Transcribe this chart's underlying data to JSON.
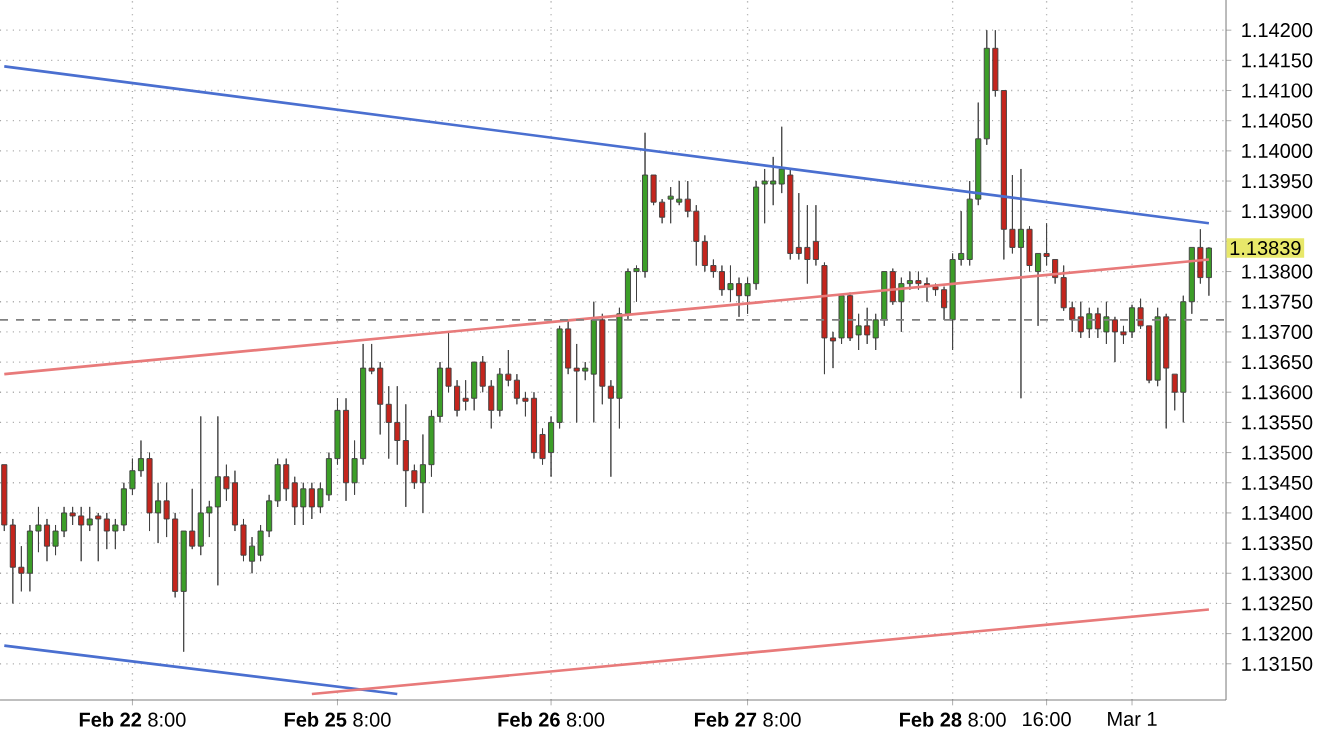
{
  "chart_data": {
    "type": "candlestick",
    "categories": [
      null,
      null,
      null,
      null,
      null,
      null,
      null,
      null,
      null,
      null,
      null,
      null,
      null,
      null,
      null,
      "**Feb 22** 8:00",
      null,
      null,
      null,
      null,
      null,
      null,
      null,
      null,
      null,
      null,
      null,
      null,
      null,
      null,
      null,
      null,
      null,
      null,
      null,
      null,
      null,
      null,
      null,
      "**Feb 25** 8:00",
      null,
      null,
      null,
      null,
      null,
      null,
      null,
      null,
      null,
      null,
      null,
      null,
      null,
      null,
      null,
      null,
      null,
      null,
      null,
      null,
      null,
      null,
      null,
      null,
      "**Feb 26** 8:00",
      null,
      null,
      null,
      null,
      null,
      null,
      null,
      null,
      null,
      null,
      null,
      null,
      null,
      null,
      null,
      null,
      null,
      null,
      null,
      null,
      null,
      null,
      "**Feb 27** 8:00",
      null,
      null,
      null,
      null,
      null,
      null,
      null,
      null,
      null,
      null,
      null,
      null,
      null,
      null,
      null,
      null,
      null,
      null,
      null,
      null,
      null,
      null,
      null,
      "**Feb 28** 8:00",
      null,
      null,
      null,
      null,
      null,
      null,
      null,
      null,
      null,
      null,
      "16:00",
      null,
      null,
      null,
      null,
      null,
      null,
      null,
      null,
      null,
      "Mar 1",
      null,
      null,
      null,
      null,
      null,
      null,
      null,
      null,
      null
    ],
    "ohlc": [
      [
        1.1348,
        1.1348,
        1.1337,
        1.1338
      ],
      [
        1.1338,
        1.1339,
        1.1325,
        1.1331
      ],
      [
        1.1331,
        1.13345,
        1.1327,
        1.133
      ],
      [
        1.133,
        1.1338,
        1.1327,
        1.1337
      ],
      [
        1.1337,
        1.1341,
        1.13335,
        1.1338
      ],
      [
        1.1338,
        1.1339,
        1.1332,
        1.13345
      ],
      [
        1.13345,
        1.1338,
        1.1333,
        1.1337
      ],
      [
        1.1337,
        1.1341,
        1.1336,
        1.134
      ],
      [
        1.134,
        1.1341,
        1.1338,
        1.13395
      ],
      [
        1.13395,
        1.1341,
        1.1332,
        1.1338
      ],
      [
        1.1338,
        1.1341,
        1.1337,
        1.1339
      ],
      [
        1.13395,
        1.134,
        1.1332,
        1.1339
      ],
      [
        1.1339,
        1.134,
        1.1334,
        1.1337
      ],
      [
        1.1337,
        1.1339,
        1.1334,
        1.1338
      ],
      [
        1.1338,
        1.1345,
        1.1337,
        1.1344
      ],
      [
        1.1344,
        1.1349,
        1.1343,
        1.1347
      ],
      [
        1.1347,
        1.1352,
        1.1346,
        1.1349
      ],
      [
        1.1349,
        1.135,
        1.1337,
        1.134
      ],
      [
        1.134,
        1.1345,
        1.1335,
        1.1342
      ],
      [
        1.1342,
        1.1345,
        1.1336,
        1.1339
      ],
      [
        1.1339,
        1.134,
        1.1326,
        1.1327
      ],
      [
        1.1327,
        1.1337,
        1.1317,
        1.1337
      ],
      [
        1.1337,
        1.1344,
        1.1334,
        1.13345
      ],
      [
        1.13345,
        1.1356,
        1.1333,
        1.134
      ],
      [
        1.134,
        1.1342,
        1.1336,
        1.1341
      ],
      [
        1.1341,
        1.1356,
        1.1328,
        1.1346
      ],
      [
        1.1346,
        1.1348,
        1.1342,
        1.1344
      ],
      [
        1.1345,
        1.1347,
        1.1337,
        1.1338
      ],
      [
        1.1338,
        1.1339,
        1.1332,
        1.1333
      ],
      [
        1.1332,
        1.1336,
        1.133,
        1.13345
      ],
      [
        1.1333,
        1.1338,
        1.1332,
        1.1337
      ],
      [
        1.1337,
        1.1343,
        1.1336,
        1.1342
      ],
      [
        1.1342,
        1.1349,
        1.1341,
        1.1348
      ],
      [
        1.1348,
        1.1349,
        1.1342,
        1.1344
      ],
      [
        1.1345,
        1.1346,
        1.1338,
        1.1341
      ],
      [
        1.1341,
        1.1345,
        1.1338,
        1.1344
      ],
      [
        1.1344,
        1.1345,
        1.1339,
        1.1341
      ],
      [
        1.1341,
        1.1345,
        1.134,
        1.1344
      ],
      [
        1.1343,
        1.135,
        1.1342,
        1.1349
      ],
      [
        1.1349,
        1.1359,
        1.1348,
        1.1357
      ],
      [
        1.1357,
        1.1359,
        1.1342,
        1.1345
      ],
      [
        1.1345,
        1.1352,
        1.1343,
        1.1349
      ],
      [
        1.1349,
        1.1368,
        1.1348,
        1.1364
      ],
      [
        1.1364,
        1.1368,
        1.1363,
        1.13635
      ],
      [
        1.1364,
        1.1365,
        1.1353,
        1.1358
      ],
      [
        1.1358,
        1.1361,
        1.1349,
        1.1355
      ],
      [
        1.1355,
        1.1361,
        1.1348,
        1.1352
      ],
      [
        1.1352,
        1.1358,
        1.1341,
        1.1347
      ],
      [
        1.1347,
        1.1348,
        1.1344,
        1.1345
      ],
      [
        1.1345,
        1.1353,
        1.134,
        1.1348
      ],
      [
        1.1348,
        1.1357,
        1.1346,
        1.1356
      ],
      [
        1.1356,
        1.1365,
        1.1355,
        1.1364
      ],
      [
        1.1364,
        1.137,
        1.136,
        1.1361
      ],
      [
        1.1361,
        1.1362,
        1.1356,
        1.1357
      ],
      [
        1.1359,
        1.1362,
        1.1357,
        1.13585
      ],
      [
        1.1359,
        1.1365,
        1.1357,
        1.1365
      ],
      [
        1.1365,
        1.1366,
        1.136,
        1.1361
      ],
      [
        1.1361,
        1.1362,
        1.1354,
        1.1357
      ],
      [
        1.1357,
        1.1364,
        1.1356,
        1.1363
      ],
      [
        1.1363,
        1.1367,
        1.1361,
        1.1362
      ],
      [
        1.1362,
        1.1363,
        1.1358,
        1.1359
      ],
      [
        1.1359,
        1.136,
        1.1356,
        1.13585
      ],
      [
        1.1359,
        1.136,
        1.1349,
        1.135
      ],
      [
        1.1353,
        1.1354,
        1.1348,
        1.1349
      ],
      [
        1.135,
        1.1356,
        1.1346,
        1.1355
      ],
      [
        1.1355,
        1.1371,
        1.1354,
        1.13705
      ],
      [
        1.13705,
        1.1372,
        1.1363,
        1.1364
      ],
      [
        1.1364,
        1.1368,
        1.1355,
        1.13635
      ],
      [
        1.13635,
        1.1365,
        1.1362,
        1.1364
      ],
      [
        1.1363,
        1.1375,
        1.1355,
        1.1372
      ],
      [
        1.1372,
        1.1373,
        1.1358,
        1.1361
      ],
      [
        1.1361,
        1.1362,
        1.1346,
        1.1359
      ],
      [
        1.1359,
        1.1374,
        1.1354,
        1.1373
      ],
      [
        1.1373,
        1.13805,
        1.1372,
        1.138
      ],
      [
        1.138,
        1.1381,
        1.1375,
        1.13805
      ],
      [
        1.138,
        1.1403,
        1.1379,
        1.1396
      ],
      [
        1.1396,
        1.1396,
        1.1391,
        1.13915
      ],
      [
        1.13915,
        1.1392,
        1.1388,
        1.1389
      ],
      [
        1.1392,
        1.1394,
        1.1388,
        1.13925
      ],
      [
        1.13915,
        1.1395,
        1.1391,
        1.1392
      ],
      [
        1.1392,
        1.1395,
        1.1389,
        1.139
      ],
      [
        1.139,
        1.1391,
        1.1381,
        1.1385
      ],
      [
        1.1385,
        1.1386,
        1.138,
        1.1381
      ],
      [
        1.1381,
        1.1382,
        1.1379,
        1.138
      ],
      [
        1.138,
        1.1381,
        1.1376,
        1.1377
      ],
      [
        1.1377,
        1.1381,
        1.1375,
        1.1378
      ],
      [
        1.1378,
        1.1379,
        1.13725,
        1.1376
      ],
      [
        1.1376,
        1.1379,
        1.1373,
        1.1378
      ],
      [
        1.1378,
        1.1395,
        1.1377,
        1.1394
      ],
      [
        1.13945,
        1.1397,
        1.1388,
        1.1395
      ],
      [
        1.13945,
        1.1399,
        1.1391,
        1.1395
      ],
      [
        1.13945,
        1.1404,
        1.1393,
        1.1397
      ],
      [
        1.1396,
        1.1397,
        1.1382,
        1.1383
      ],
      [
        1.1384,
        1.1393,
        1.1382,
        1.1383
      ],
      [
        1.1384,
        1.1391,
        1.1378,
        1.1382
      ],
      [
        1.1385,
        1.1391,
        1.1381,
        1.1382
      ],
      [
        1.1381,
        1.13815,
        1.1363,
        1.1369
      ],
      [
        1.1369,
        1.137,
        1.1364,
        1.13685
      ],
      [
        1.1369,
        1.1376,
        1.1368,
        1.1376
      ],
      [
        1.1376,
        1.13765,
        1.13685,
        1.1369
      ],
      [
        1.13695,
        1.1373,
        1.1367,
        1.1371
      ],
      [
        1.1371,
        1.1374,
        1.1368,
        1.13695
      ],
      [
        1.1369,
        1.1373,
        1.1367,
        1.1372
      ],
      [
        1.1372,
        1.138,
        1.1371,
        1.138
      ],
      [
        1.138,
        1.13805,
        1.13745,
        1.1375
      ],
      [
        1.1375,
        1.1379,
        1.137,
        1.1378
      ],
      [
        1.1378,
        1.138,
        1.1377,
        1.13785
      ],
      [
        1.13785,
        1.138,
        1.1377,
        1.1378
      ],
      [
        1.1378,
        1.1379,
        1.1375,
        1.13775
      ],
      [
        1.13775,
        1.1378,
        1.1376,
        1.1377
      ],
      [
        1.1377,
        1.13775,
        1.1372,
        1.1374
      ],
      [
        1.1372,
        1.1383,
        1.1367,
        1.1382
      ],
      [
        1.1382,
        1.139,
        1.1381,
        1.1383
      ],
      [
        1.1382,
        1.1395,
        1.1381,
        1.1392
      ],
      [
        1.1392,
        1.1408,
        1.1391,
        1.1402
      ],
      [
        1.1402,
        1.142,
        1.1401,
        1.1417
      ],
      [
        1.1417,
        1.142,
        1.1409,
        1.141
      ],
      [
        1.141,
        1.141,
        1.1382,
        1.1387
      ],
      [
        1.1387,
        1.1396,
        1.1383,
        1.1384
      ],
      [
        1.1384,
        1.1397,
        1.1359,
        1.1387
      ],
      [
        1.1387,
        1.13875,
        1.138,
        1.1381
      ],
      [
        1.138,
        1.1383,
        1.1371,
        1.1383
      ],
      [
        1.1383,
        1.1388,
        1.1381,
        1.13825
      ],
      [
        1.1382,
        1.1382,
        1.1378,
        1.1379
      ],
      [
        1.1379,
        1.1381,
        1.13735,
        1.1374
      ],
      [
        1.1374,
        1.1375,
        1.137,
        1.1372
      ],
      [
        1.13725,
        1.1375,
        1.1369,
        1.137
      ],
      [
        1.13705,
        1.1374,
        1.1369,
        1.1373
      ],
      [
        1.1373,
        1.1374,
        1.1369,
        1.13705
      ],
      [
        1.137,
        1.1375,
        1.1368,
        1.13725
      ],
      [
        1.1372,
        1.13725,
        1.1365,
        1.137
      ],
      [
        1.137,
        1.1371,
        1.1368,
        1.13695
      ],
      [
        1.137,
        1.13745,
        1.1369,
        1.1374
      ],
      [
        1.1374,
        1.13755,
        1.13705,
        1.1371
      ],
      [
        1.1371,
        1.1371,
        1.13615,
        1.1362
      ],
      [
        1.1362,
        1.1374,
        1.1361,
        1.13725
      ],
      [
        1.13725,
        1.1373,
        1.1354,
        1.1364
      ],
      [
        1.1363,
        1.1363,
        1.1357,
        1.136
      ],
      [
        1.136,
        1.1376,
        1.1355,
        1.1375
      ],
      [
        1.1375,
        1.1384,
        1.1373,
        1.1384
      ],
      [
        1.1384,
        1.1387,
        1.1378,
        1.1379
      ],
      [
        1.1379,
        1.1384,
        1.1376,
        1.13839
      ]
    ],
    "series": [
      {
        "type": "line",
        "color": "#4a6fd0",
        "values": [
          1.1414,
          null,
          null,
          null,
          null,
          null,
          null,
          null,
          null,
          null,
          null,
          null,
          null,
          null,
          null,
          null,
          null,
          null,
          null,
          null,
          null,
          null,
          null,
          null,
          null,
          null,
          null,
          null,
          null,
          null,
          null,
          null,
          null,
          null,
          null,
          null,
          null,
          null,
          null,
          null,
          null,
          null,
          null,
          null,
          null,
          null,
          null,
          null,
          null,
          null,
          null,
          null,
          null,
          null,
          null,
          null,
          null,
          null,
          null,
          null,
          null,
          null,
          null,
          null,
          null,
          null,
          null,
          null,
          null,
          null,
          null,
          null,
          null,
          null,
          null,
          null,
          null,
          null,
          null,
          null,
          null,
          null,
          null,
          null,
          null,
          null,
          null,
          null,
          null,
          null,
          null,
          null,
          null,
          null,
          null,
          null,
          null,
          null,
          null,
          null,
          null,
          null,
          null,
          null,
          null,
          null,
          null,
          null,
          null,
          null,
          null,
          null,
          null,
          null,
          null,
          null,
          null,
          null,
          null,
          null,
          null,
          null,
          null,
          null,
          null,
          null,
          null,
          null,
          null,
          null,
          null,
          null,
          null,
          null,
          null,
          null,
          null,
          null,
          null,
          null,
          null,
          1.1388
        ]
      },
      {
        "type": "line",
        "color": "#4a6fd0",
        "values": [
          1.1318,
          null,
          null,
          null,
          null,
          null,
          null,
          null,
          null,
          null,
          null,
          null,
          null,
          null,
          null,
          null,
          null,
          null,
          null,
          null,
          null,
          null,
          null,
          null,
          null,
          null,
          null,
          null,
          null,
          null,
          null,
          null,
          null,
          null,
          null,
          null,
          null,
          null,
          null,
          null,
          null,
          null,
          null,
          null,
          null,
          null,
          1.131,
          null,
          null,
          null,
          null,
          null,
          null,
          null,
          null,
          null,
          null,
          null,
          null,
          null,
          null,
          null,
          null,
          null,
          null,
          null,
          null,
          null,
          null,
          null,
          null,
          null,
          null,
          null,
          null,
          null,
          null,
          null,
          null,
          null,
          null,
          null,
          null,
          null,
          null,
          null,
          null,
          null,
          null,
          null,
          null,
          null,
          null,
          null,
          null,
          null,
          null,
          null,
          null,
          null,
          null,
          null,
          null,
          null,
          null,
          null,
          null,
          null,
          null,
          null,
          null,
          null,
          null,
          null,
          null,
          null,
          null,
          null,
          null,
          null,
          null,
          null,
          null,
          null,
          null,
          null,
          null,
          null,
          null,
          null,
          null,
          null,
          null,
          null,
          null,
          null,
          null,
          null,
          null,
          null,
          null,
          null
        ]
      },
      {
        "type": "line",
        "color": "#e87a7a",
        "values": [
          1.1363,
          null,
          null,
          null,
          null,
          null,
          null,
          null,
          null,
          null,
          null,
          null,
          null,
          null,
          null,
          null,
          null,
          null,
          null,
          null,
          null,
          null,
          null,
          null,
          null,
          null,
          null,
          null,
          null,
          null,
          null,
          null,
          null,
          null,
          null,
          null,
          null,
          null,
          null,
          null,
          null,
          null,
          null,
          null,
          null,
          null,
          null,
          null,
          null,
          null,
          null,
          null,
          null,
          null,
          null,
          null,
          null,
          null,
          null,
          null,
          null,
          null,
          null,
          null,
          null,
          null,
          null,
          null,
          null,
          null,
          null,
          null,
          null,
          null,
          null,
          null,
          null,
          null,
          null,
          null,
          null,
          null,
          null,
          null,
          null,
          null,
          null,
          null,
          null,
          null,
          null,
          null,
          null,
          null,
          null,
          null,
          null,
          null,
          null,
          null,
          null,
          null,
          null,
          null,
          null,
          null,
          null,
          null,
          null,
          null,
          null,
          null,
          null,
          null,
          null,
          null,
          null,
          null,
          null,
          null,
          null,
          null,
          null,
          null,
          null,
          null,
          null,
          null,
          null,
          null,
          null,
          null,
          null,
          null,
          null,
          null,
          null,
          null,
          null,
          null,
          null,
          1.1382
        ]
      },
      {
        "type": "line",
        "color": "#e87a7a",
        "values": [
          null,
          null,
          null,
          null,
          null,
          null,
          null,
          null,
          null,
          null,
          null,
          null,
          null,
          null,
          null,
          null,
          null,
          null,
          null,
          null,
          null,
          null,
          null,
          null,
          null,
          null,
          null,
          null,
          null,
          null,
          null,
          null,
          null,
          null,
          null,
          null,
          1.131,
          null,
          null,
          null,
          null,
          null,
          null,
          null,
          null,
          null,
          null,
          null,
          null,
          null,
          null,
          null,
          null,
          null,
          null,
          null,
          null,
          null,
          null,
          null,
          null,
          null,
          null,
          null,
          null,
          null,
          null,
          null,
          null,
          null,
          null,
          null,
          null,
          null,
          null,
          null,
          null,
          null,
          null,
          null,
          null,
          null,
          null,
          null,
          null,
          null,
          null,
          null,
          null,
          null,
          null,
          null,
          null,
          null,
          null,
          null,
          null,
          null,
          null,
          null,
          null,
          null,
          null,
          null,
          null,
          null,
          null,
          null,
          null,
          null,
          null,
          null,
          null,
          null,
          null,
          null,
          null,
          null,
          null,
          null,
          null,
          null,
          null,
          null,
          null,
          null,
          null,
          null,
          null,
          null,
          null,
          null,
          null,
          null,
          null,
          null,
          null,
          null,
          null,
          null,
          null,
          1.1324
        ]
      }
    ],
    "ylim": [
      1.1309,
      1.1425
    ],
    "yticks": [
      {
        "value": 1.1315,
        "label": "1.13150"
      },
      {
        "value": 1.132,
        "label": "1.13200"
      },
      {
        "value": 1.1325,
        "label": "1.13250"
      },
      {
        "value": 1.133,
        "label": "1.13300"
      },
      {
        "value": 1.1335,
        "label": "1.13350"
      },
      {
        "value": 1.134,
        "label": "1.13400"
      },
      {
        "value": 1.1345,
        "label": "1.13450"
      },
      {
        "value": 1.135,
        "label": "1.13500"
      },
      {
        "value": 1.1355,
        "label": "1.13550"
      },
      {
        "value": 1.136,
        "label": "1.13600"
      },
      {
        "value": 1.1365,
        "label": "1.13650"
      },
      {
        "value": 1.137,
        "label": "1.13700"
      },
      {
        "value": 1.1375,
        "label": "1.13750"
      },
      {
        "value": 1.138,
        "label": "1.13800"
      },
      {
        "value": 1.1385,
        "label": null
      },
      {
        "value": 1.139,
        "label": "1.13900"
      },
      {
        "value": 1.1395,
        "label": "1.13950"
      },
      {
        "value": 1.14,
        "label": "1.14000"
      },
      {
        "value": 1.1405,
        "label": "1.14050"
      },
      {
        "value": 1.141,
        "label": "1.14100"
      },
      {
        "value": 1.1415,
        "label": "1.14150"
      },
      {
        "value": 1.142,
        "label": "1.14200"
      }
    ],
    "ref_lines": [
      {
        "axis": "y",
        "value": 1.1372,
        "color": "#808080",
        "line_style": "dashed"
      }
    ],
    "annotations": [
      "1.13839"
    ],
    "grid": true,
    "marker": "none",
    "line_style": "solid"
  }
}
